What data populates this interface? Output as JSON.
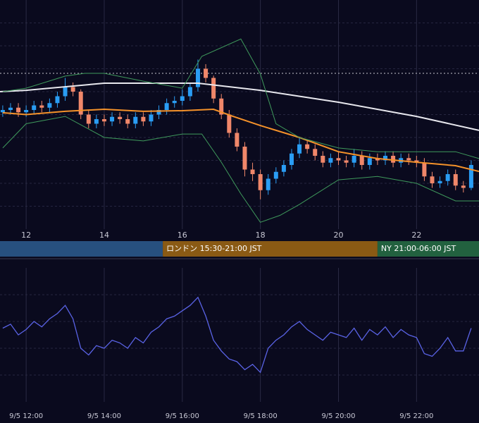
{
  "chart_data": [
    {
      "type": "candlestick",
      "xlim": [
        11.33,
        23.6
      ],
      "xticks": [
        {
          "value": 12,
          "label": "12"
        },
        {
          "value": 14,
          "label": "14"
        },
        {
          "value": 16,
          "label": "16"
        },
        {
          "value": 18,
          "label": "18"
        },
        {
          "value": 20,
          "label": "20"
        },
        {
          "value": 22,
          "label": "22"
        }
      ],
      "ylim": [
        0,
        100
      ],
      "yticks": [
        10,
        20,
        30,
        40,
        50,
        60,
        70,
        80,
        90
      ],
      "grid": true,
      "up_color": "#2a9df4",
      "down_color": "#f0876a",
      "reference_line": {
        "value": 68,
        "color": "#c8c8d0"
      },
      "x": [
        11.4,
        11.6,
        11.8,
        12.0,
        12.2,
        12.4,
        12.6,
        12.8,
        13.0,
        13.2,
        13.4,
        13.6,
        13.8,
        14.0,
        14.2,
        14.4,
        14.6,
        14.8,
        15.0,
        15.2,
        15.4,
        15.6,
        15.8,
        16.0,
        16.2,
        16.4,
        16.6,
        16.8,
        17.0,
        17.2,
        17.4,
        17.6,
        17.8,
        18.0,
        18.2,
        18.4,
        18.6,
        18.8,
        19.0,
        19.2,
        19.4,
        19.6,
        19.8,
        20.0,
        20.2,
        20.4,
        20.6,
        20.8,
        21.0,
        21.2,
        21.4,
        21.6,
        21.8,
        22.0,
        22.2,
        22.4,
        22.6,
        22.8,
        23.0,
        23.2,
        23.4
      ],
      "open": [
        51,
        52,
        53,
        51,
        52,
        54,
        53,
        55,
        58,
        62,
        60,
        50,
        46,
        48,
        47,
        49,
        48,
        46,
        49,
        47,
        50,
        52,
        55,
        56,
        58,
        62,
        70,
        66,
        57,
        50,
        42,
        36,
        26,
        24,
        17,
        22,
        25,
        28,
        33,
        37,
        35,
        32,
        29,
        31,
        30,
        29,
        32,
        28,
        31,
        30,
        32,
        29,
        31,
        30,
        29,
        23,
        20,
        21,
        24,
        19,
        18
      ],
      "high": [
        54,
        55,
        55,
        54,
        56,
        56,
        57,
        60,
        66,
        64,
        61,
        52,
        50,
        50,
        51,
        51,
        50,
        51,
        51,
        52,
        54,
        57,
        58,
        61,
        64,
        74,
        72,
        67,
        59,
        52,
        44,
        38,
        29,
        26,
        24,
        27,
        30,
        35,
        40,
        39,
        37,
        34,
        33,
        34,
        32,
        35,
        34,
        33,
        33,
        34,
        34,
        33,
        33,
        32,
        31,
        25,
        23,
        26,
        26,
        21,
        30
      ],
      "low": [
        49,
        50,
        49,
        49,
        50,
        51,
        51,
        53,
        56,
        58,
        48,
        44,
        44,
        45,
        45,
        46,
        44,
        44,
        45,
        45,
        48,
        50,
        53,
        54,
        56,
        60,
        64,
        55,
        48,
        40,
        34,
        23,
        21,
        13,
        15,
        20,
        23,
        26,
        31,
        33,
        30,
        27,
        27,
        28,
        27,
        27,
        26,
        26,
        28,
        28,
        27,
        27,
        28,
        27,
        21,
        18,
        18,
        19,
        17,
        16,
        17
      ],
      "close": [
        52,
        53,
        51,
        52,
        54,
        53,
        55,
        58,
        62,
        60,
        50,
        46,
        48,
        47,
        49,
        48,
        46,
        49,
        47,
        50,
        52,
        55,
        56,
        58,
        62,
        70,
        66,
        57,
        50,
        42,
        36,
        26,
        24,
        17,
        22,
        25,
        28,
        33,
        37,
        35,
        32,
        29,
        31,
        30,
        29,
        32,
        28,
        31,
        30,
        32,
        29,
        31,
        30,
        29,
        23,
        20,
        21,
        24,
        19,
        18,
        28
      ],
      "series": [
        {
          "color": "#e8e8ee",
          "x": [
            11.33,
            12,
            14,
            16.4,
            18,
            20,
            22,
            23.6
          ],
          "values": [
            60,
            60.6,
            63.7,
            63.7,
            60.6,
            55.4,
            49.2,
            43.1
          ]
        },
        {
          "color": "#f5922a",
          "x": [
            11.4,
            12,
            13,
            14,
            15,
            16,
            16.8,
            17.3,
            18,
            19,
            20,
            21,
            22,
            23,
            23.6
          ],
          "values": [
            50.8,
            50,
            51.4,
            52.3,
            51.4,
            51.7,
            52.3,
            49.2,
            45.2,
            40,
            33.8,
            30.8,
            29.2,
            27.7,
            25.2
          ]
        },
        {
          "color": "#3f9a5c",
          "x": [
            11.4,
            12,
            13,
            13.5,
            14,
            15,
            16,
            16.5,
            17.5,
            18,
            18.4,
            19,
            20,
            21,
            22,
            23,
            23.6
          ],
          "values": [
            60,
            61.5,
            66.8,
            68,
            68,
            64.6,
            61.5,
            75.4,
            83,
            67.7,
            46,
            40,
            35.4,
            33.8,
            33.8,
            33.8,
            30.8
          ]
        },
        {
          "color": "#3f9a5c",
          "x": [
            11.4,
            12,
            13,
            13.5,
            14,
            15,
            16,
            16.5,
            17,
            17.5,
            18,
            18.5,
            19,
            20,
            21,
            22,
            23,
            23.6
          ],
          "values": [
            35.4,
            46,
            49.2,
            44.6,
            40,
            38.5,
            41.5,
            41.5,
            29.2,
            15.4,
            3,
            6,
            10.8,
            21.5,
            23,
            20,
            12.3,
            12.3
          ]
        }
      ],
      "sessions": [
        {
          "end": 15.5,
          "color": "#27507f"
        },
        {
          "label": "ロンドン 15:30-21:00 JST",
          "start": 15.5,
          "end": 21,
          "color": "#8a5a14"
        },
        {
          "label": "NY 21:00-06:00 JST",
          "start": 21,
          "color": "#22613f"
        }
      ]
    },
    {
      "type": "line",
      "xlim": [
        11.33,
        23.6
      ],
      "xticks": [
        {
          "value": 12,
          "label": "9/5 12:00"
        },
        {
          "value": 14,
          "label": "9/5 14:00"
        },
        {
          "value": 16,
          "label": "9/5 16:00"
        },
        {
          "value": 18,
          "label": "9/5 18:00"
        },
        {
          "value": 20,
          "label": "9/5 20:00"
        },
        {
          "value": 22,
          "label": "9/5 22:00"
        }
      ],
      "ylim": [
        0,
        100
      ],
      "yticks": [
        20,
        40,
        60,
        80
      ],
      "grid": true,
      "series": [
        {
          "color": "#5a63e6",
          "x": [
            11.4,
            11.6,
            11.8,
            12.0,
            12.2,
            12.4,
            12.6,
            12.8,
            13.0,
            13.2,
            13.4,
            13.6,
            13.8,
            14.0,
            14.2,
            14.4,
            14.6,
            14.8,
            15.0,
            15.2,
            15.4,
            15.6,
            15.8,
            16.0,
            16.2,
            16.4,
            16.6,
            16.8,
            17.0,
            17.2,
            17.4,
            17.6,
            17.8,
            18.0,
            18.2,
            18.4,
            18.6,
            18.8,
            19.0,
            19.2,
            19.4,
            19.6,
            19.8,
            20.0,
            20.2,
            20.4,
            20.6,
            20.8,
            21.0,
            21.2,
            21.4,
            21.6,
            21.8,
            22.0,
            22.2,
            22.4,
            22.6,
            22.8,
            23.0,
            23.2,
            23.4
          ],
          "values": [
            55,
            58,
            50,
            54,
            60,
            56,
            62,
            66,
            72,
            62,
            40,
            35,
            42,
            40,
            46,
            44,
            40,
            48,
            44,
            52,
            56,
            62,
            64,
            68,
            72,
            78,
            64,
            46,
            38,
            32,
            30,
            24,
            28,
            22,
            40,
            46,
            50,
            56,
            60,
            54,
            50,
            46,
            52,
            50,
            48,
            55,
            46,
            54,
            50,
            56,
            48,
            54,
            50,
            48,
            36,
            34,
            40,
            48,
            38,
            38,
            55
          ]
        }
      ]
    }
  ]
}
